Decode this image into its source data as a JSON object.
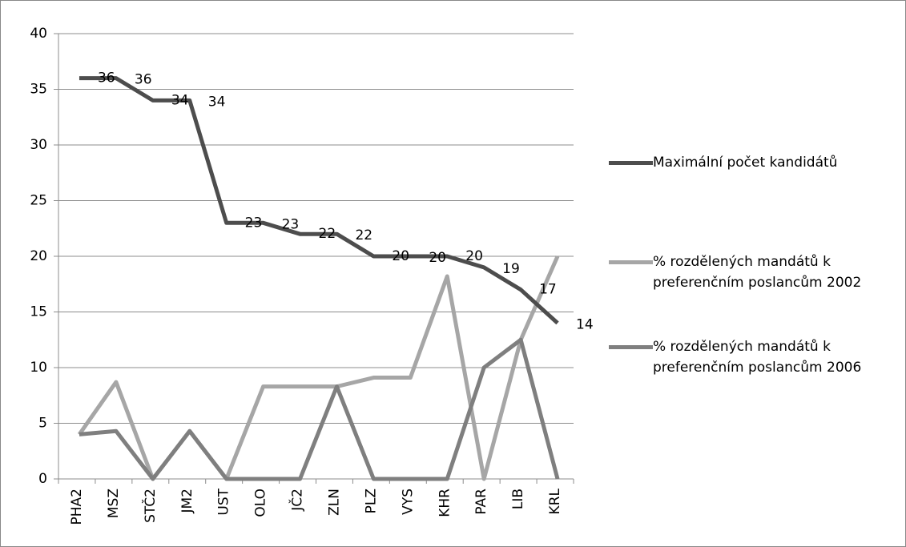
{
  "chart_data": {
    "type": "line",
    "categories": [
      "PHA2",
      "MSZ",
      "STČ2",
      "JM2",
      "UST",
      "OLO",
      "JČ2",
      "ZLN",
      "PLZ",
      "VYS",
      "KHR",
      "PAR",
      "LIB",
      "KRL"
    ],
    "series": [
      {
        "name": "Maximální počet kandidátů",
        "color": "#4d4d4d",
        "values": [
          36,
          36,
          34,
          34,
          23,
          23,
          22,
          22,
          20,
          20,
          20,
          19,
          17,
          14
        ],
        "data_labels": true
      },
      {
        "name": "% rozdělených mandátů k preferenčním poslancům 2002",
        "color": "#a6a6a6",
        "values": [
          4,
          8.7,
          0,
          4.3,
          0,
          8.3,
          8.3,
          8.3,
          9.1,
          9.1,
          18.2,
          0,
          12.5,
          20
        ]
      },
      {
        "name": "% rozdělených mandátů k preferenčním poslancům 2006",
        "color": "#7f7f7f",
        "values": [
          4,
          4.3,
          0,
          4.3,
          0,
          0,
          0,
          8.3,
          0,
          0,
          0,
          10,
          12.5,
          0
        ]
      }
    ],
    "ylim": [
      0,
      40
    ],
    "yticks": [
      0,
      5,
      10,
      15,
      20,
      25,
      30,
      35,
      40
    ],
    "grid": true,
    "legend": "right"
  }
}
